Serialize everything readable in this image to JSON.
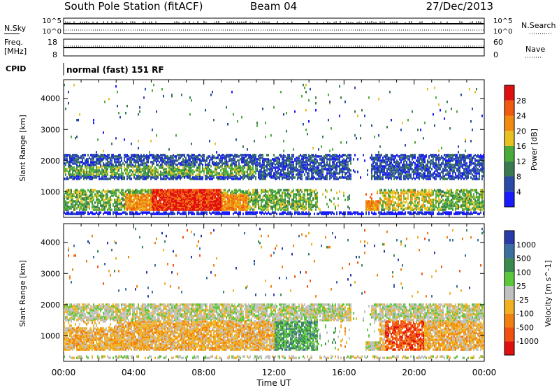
{
  "header": {
    "title": "South Pole Station (fitACF)",
    "beam": "Beam 04",
    "date": "27/Dec/2013"
  },
  "top_panels": {
    "nsky_label": "N.Sky",
    "nsky_ticks": [
      "10^5",
      "10^0"
    ],
    "nsearch_label": "N.Search",
    "nsearch_ticks": [
      "10^5",
      "10^0"
    ],
    "freq_label_1": "Freq.",
    "freq_label_2": "[MHz]",
    "freq_ticks": [
      "18",
      "8"
    ],
    "nave_label": "Nave",
    "nave_ticks": [
      "60",
      "0"
    ],
    "cpid_label": "CPID",
    "cpid_value": "normal (fast) 151 RF"
  },
  "chart_data": [
    {
      "type": "heatmap",
      "name": "power",
      "ylabel": "Slant Range [km]",
      "ylim": [
        180,
        4600
      ],
      "yticks": [
        "1000",
        "2000",
        "3000",
        "4000"
      ],
      "colorbar_label": "Power [dB]",
      "colorbar_ticks": [
        "4",
        "8",
        "12",
        "16",
        "20",
        "24",
        "28"
      ],
      "colors": [
        "#1a1aff",
        "#2a4aa8",
        "#3a7a50",
        "#4aaa3a",
        "#e8c020",
        "#f08a10",
        "#f05a10",
        "#e01010"
      ]
    },
    {
      "type": "heatmap",
      "name": "velocity",
      "xlabel": "Time UT",
      "xticks": [
        "00:00",
        "04:00",
        "08:00",
        "12:00",
        "16:00",
        "20:00",
        "00:00"
      ],
      "ylabel": "Slant Range [km]",
      "ylim": [
        180,
        4600
      ],
      "yticks": [
        "1000",
        "2000",
        "3000",
        "4000"
      ],
      "colorbar_label": "Velocity [m s^-1]",
      "colorbar_ticks": [
        "1000",
        "500",
        "100",
        "25",
        "-25",
        "-100",
        "-500",
        "-1000"
      ],
      "colors": [
        "#2a3aa8",
        "#3a70a0",
        "#3a8a50",
        "#5ac83a",
        "#c0c0c0",
        "#f0b020",
        "#f08010",
        "#f05010",
        "#e01010"
      ]
    }
  ]
}
